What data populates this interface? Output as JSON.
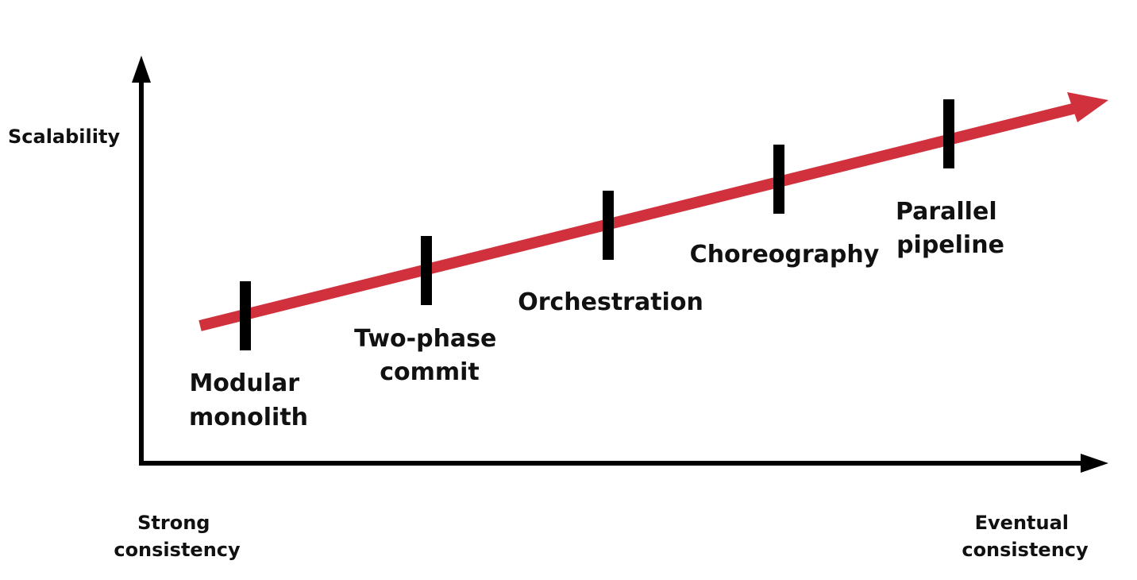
{
  "axes": {
    "y_label": "Scalability",
    "x_left_label": [
      "Strong",
      "consistency"
    ],
    "x_right_label": [
      "Eventual",
      "consistency"
    ]
  },
  "trend": {
    "color": "#d0313d"
  },
  "stages": [
    {
      "label": [
        "Modular",
        "monolith"
      ]
    },
    {
      "label": [
        "Two-phase",
        "commit"
      ]
    },
    {
      "label": [
        "Orchestration"
      ]
    },
    {
      "label": [
        "Choreography"
      ]
    },
    {
      "label": [
        "Parallel",
        "pipeline"
      ]
    }
  ],
  "colors": {
    "axis": "#000000",
    "tick": "#000000",
    "text": "#111111"
  }
}
